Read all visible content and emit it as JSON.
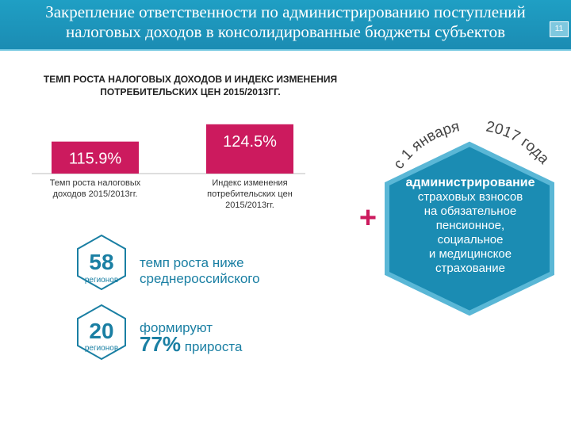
{
  "header": {
    "title_line1": "Закрепление ответственности по администрированию поступлений",
    "title_line2": "налоговых доходов в консолидированные бюджеты субъектов",
    "page_number": "11"
  },
  "subtitle": "ТЕМП РОСТА НАЛОГОВЫХ ДОХОДОВ И ИНДЕКС ИЗМЕНЕНИЯ ПОТРЕБИТЕЛЬСКИХ ЦЕН 2015/2013ГГ.",
  "chart_data": {
    "type": "bar",
    "categories": [
      "Темп роста налоговых доходов 2015/2013гг.",
      "Индекс изменения потребительских цен 2015/2013гг."
    ],
    "values": [
      115.9,
      124.5
    ],
    "value_labels": [
      "115.9%",
      "124.5%"
    ],
    "title": "ТЕМП РОСТА НАЛОГОВЫХ ДОХОДОВ И ИНДЕКС ИЗМЕНЕНИЯ ПОТРЕБИТЕЛЬСКИХ ЦЕН 2015/2013ГГ.",
    "xlabel": "",
    "ylabel": "",
    "ylim": [
      100,
      126
    ],
    "bar_color": "#cc1a5e",
    "grid": false,
    "legend": "none"
  },
  "stats": [
    {
      "number": "58",
      "unit": "регионов",
      "text_line1": "темп роста ниже",
      "text_line2": "среднероссийского"
    },
    {
      "number": "20",
      "unit": "регионов",
      "text_line1": "формируют",
      "pct": "77%",
      "text_tail": "прироста"
    }
  ],
  "plus_sign": "+",
  "arc_text": {
    "part1": "с 1 января",
    "part2": "2017 года"
  },
  "big_hex": {
    "bold_line": "администрирование",
    "lines": [
      "страховых взносов",
      "на обязательное",
      "пенсионное,",
      "социальное",
      "и медицинское",
      "страхование"
    ]
  },
  "colors": {
    "header": "#1f9fc4",
    "accent": "#cc1a5e",
    "hex": "#1b8cb3",
    "text_blue": "#1a7fa3"
  }
}
